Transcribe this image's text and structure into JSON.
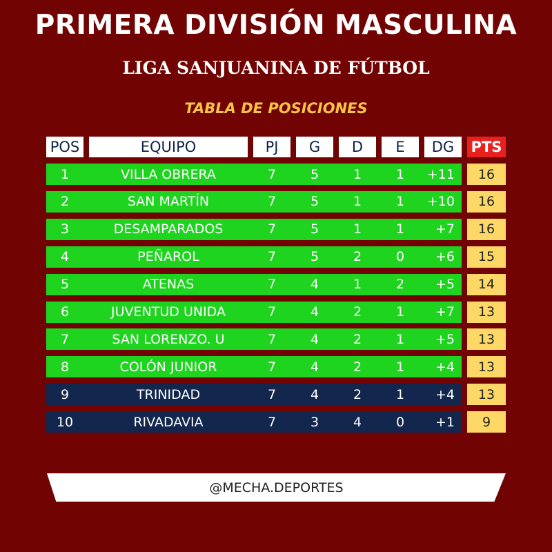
{
  "title": "PRIMERA DIVISIÓN MASCULINA",
  "subtitle": "LIGA SANJUANINA DE FÚTBOL",
  "section": "TABLA DE POSICIONES",
  "colors": {
    "background": "#720303",
    "top_rows": "#1fd41f",
    "bottom_rows": "#13264d",
    "points": "#fdd866",
    "pts_header": "#e8201e"
  },
  "headers": [
    "POS",
    "EQUIPO",
    "PJ",
    "G",
    "D",
    "E",
    "DG",
    "PTS"
  ],
  "rows": [
    [
      "1",
      "VILLA OBRERA",
      "7",
      "5",
      "1",
      "1",
      "+11",
      "16"
    ],
    [
      "2",
      "SAN MARTÍN",
      "7",
      "5",
      "1",
      "1",
      "+10",
      "16"
    ],
    [
      "3",
      "DESAMPARADOS",
      "7",
      "5",
      "1",
      "1",
      "+7",
      "16"
    ],
    [
      "4",
      "PEÑAROL",
      "7",
      "5",
      "2",
      "0",
      "+6",
      "15"
    ],
    [
      "5",
      "ATENAS",
      "7",
      "4",
      "1",
      "2",
      "+5",
      "14"
    ],
    [
      "6",
      "JUVENTUD UNIDA",
      "7",
      "4",
      "2",
      "1",
      "+7",
      "13"
    ],
    [
      "7",
      "SAN LORENZO. U",
      "7",
      "4",
      "2",
      "1",
      "+5",
      "13"
    ],
    [
      "8",
      "COLÓN JUNIOR",
      "7",
      "4",
      "2",
      "1",
      "+4",
      "13"
    ],
    [
      "9",
      "TRINIDAD",
      "7",
      "4",
      "2",
      "1",
      "+4",
      "13"
    ],
    [
      "10",
      "RIVADAVIA",
      "7",
      "3",
      "4",
      "0",
      "+1",
      "9"
    ]
  ],
  "footer": "@MECHA.DEPORTES"
}
